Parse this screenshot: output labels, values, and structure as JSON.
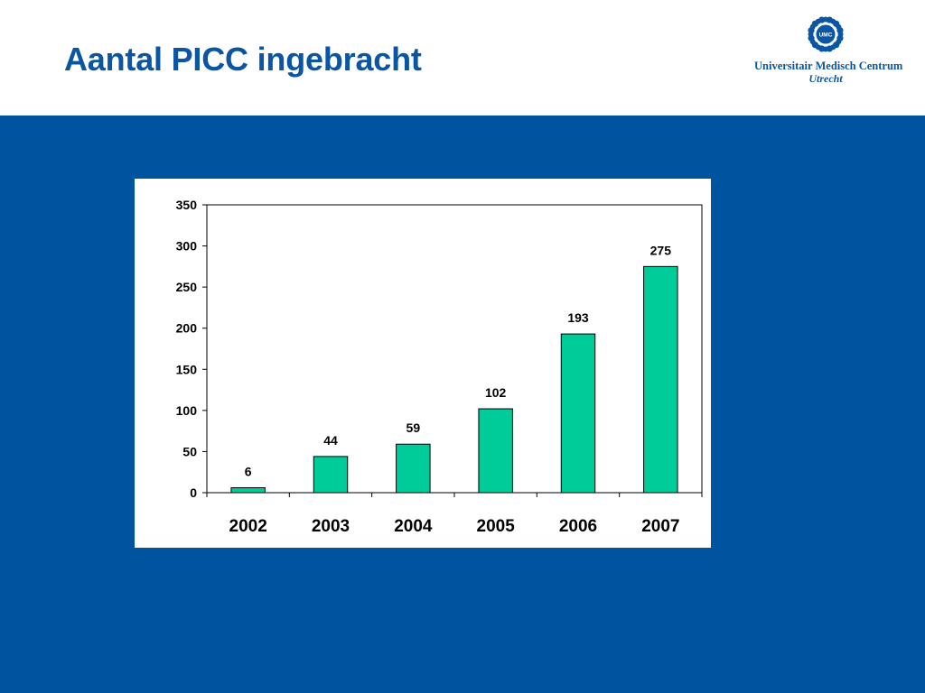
{
  "slide": {
    "title": "Aantal PICC ingebracht",
    "band_color": "#00539f",
    "title_color": "#0b56a4"
  },
  "logo": {
    "emblem_text": "UMC",
    "name": "Universitair Medisch Centrum",
    "city": "Utrecht",
    "color": "#0b56a4"
  },
  "chart_data": {
    "type": "bar",
    "categories": [
      "2002",
      "2003",
      "2004",
      "2005",
      "2006",
      "2007"
    ],
    "values": [
      6,
      44,
      59,
      102,
      193,
      275
    ],
    "data_labels": [
      "6",
      "44",
      "59",
      "102",
      "193",
      "275"
    ],
    "title": "",
    "xlabel": "",
    "ylabel": "",
    "ylim": [
      0,
      350
    ],
    "yticks": [
      0,
      50,
      100,
      150,
      200,
      250,
      300,
      350
    ],
    "grid": false,
    "legend": "none",
    "bar_color": "#00cc99"
  }
}
